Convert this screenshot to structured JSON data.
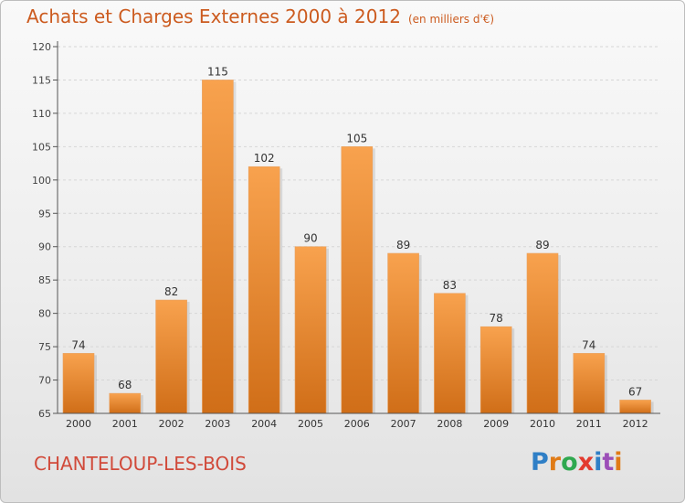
{
  "header": {
    "title": "Achats et Charges Externes 2000 à 2012",
    "subtitle": "(en milliers d'€)"
  },
  "footer": {
    "city": "CHANTELOUP-LES-BOIS",
    "logo": "Proxiti",
    "logo_letters": [
      "P",
      "r",
      "o",
      "x",
      "i",
      "t",
      "i"
    ]
  },
  "colors": {
    "bar_top": "#f8a24e",
    "bar_bottom": "#d06e18",
    "title": "#cc5b1f",
    "city": "#d14a3a"
  },
  "chart_data": {
    "type": "bar",
    "categories": [
      "2000",
      "2001",
      "2002",
      "2003",
      "2004",
      "2005",
      "2006",
      "2007",
      "2008",
      "2009",
      "2010",
      "2011",
      "2012"
    ],
    "values": [
      74,
      68,
      82,
      115,
      102,
      90,
      105,
      89,
      83,
      78,
      89,
      74,
      67
    ],
    "ylim": [
      65,
      120
    ],
    "yticks": [
      65,
      70,
      75,
      80,
      85,
      90,
      95,
      100,
      105,
      110,
      115,
      120
    ],
    "grid": true,
    "data_labels": true
  }
}
